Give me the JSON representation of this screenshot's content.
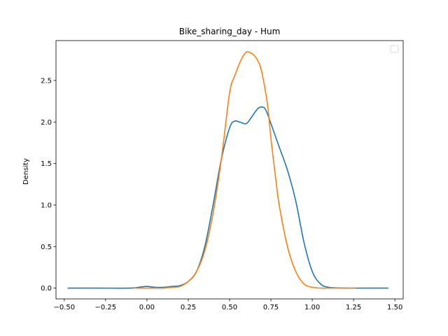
{
  "chart_data": {
    "type": "line",
    "title": "Bike_sharing_day - Hum",
    "xlabel": "",
    "ylabel": "Density",
    "xlim": [
      -0.55,
      1.55
    ],
    "ylim": [
      -0.13,
      2.98
    ],
    "xticks": [
      -0.5,
      -0.25,
      0.0,
      0.25,
      0.5,
      0.75,
      1.0,
      1.25,
      1.5
    ],
    "xtick_labels": [
      "−0.50",
      "−0.25",
      "0.00",
      "0.25",
      "0.50",
      "0.75",
      "1.00",
      "1.25",
      "1.50"
    ],
    "yticks": [
      0.0,
      0.5,
      1.0,
      1.5,
      2.0,
      2.5
    ],
    "ytick_labels": [
      "0.0",
      "0.5",
      "1.0",
      "1.5",
      "2.0",
      "2.5"
    ],
    "grid": false,
    "legend": {
      "placement": "top-right",
      "entries": []
    },
    "series": [
      {
        "color": "#1f77b4",
        "x": [
          -0.48,
          -0.3,
          -0.1,
          -0.05,
          0.0,
          0.05,
          0.1,
          0.15,
          0.2,
          0.25,
          0.3,
          0.35,
          0.4,
          0.45,
          0.5,
          0.53,
          0.56,
          0.6,
          0.63,
          0.67,
          0.7,
          0.72,
          0.75,
          0.8,
          0.85,
          0.9,
          0.95,
          1.0,
          1.05,
          1.1,
          1.2,
          1.3,
          1.46
        ],
        "y": [
          0.0,
          0.0,
          0.0,
          0.01,
          0.02,
          0.01,
          0.01,
          0.02,
          0.03,
          0.08,
          0.2,
          0.5,
          1.0,
          1.55,
          1.93,
          2.01,
          2.0,
          1.98,
          2.05,
          2.16,
          2.18,
          2.14,
          1.98,
          1.7,
          1.42,
          1.05,
          0.55,
          0.2,
          0.05,
          0.01,
          0.0,
          0.0,
          0.0
        ]
      },
      {
        "color": "#ff7f0e",
        "x": [
          -0.08,
          0.0,
          0.05,
          0.1,
          0.15,
          0.2,
          0.25,
          0.3,
          0.35,
          0.4,
          0.45,
          0.5,
          0.53,
          0.57,
          0.6,
          0.62,
          0.65,
          0.68,
          0.7,
          0.73,
          0.75,
          0.78,
          0.8,
          0.85,
          0.9,
          0.95,
          1.0,
          1.05,
          1.1,
          1.15,
          1.26
        ],
        "y": [
          0.0,
          0.0,
          0.0,
          0.0,
          0.01,
          0.02,
          0.08,
          0.2,
          0.45,
          0.9,
          1.55,
          2.35,
          2.55,
          2.75,
          2.84,
          2.84,
          2.8,
          2.7,
          2.55,
          2.2,
          1.8,
          1.3,
          1.0,
          0.5,
          0.2,
          0.05,
          0.01,
          0.0,
          0.0,
          0.0,
          0.0
        ]
      }
    ]
  }
}
